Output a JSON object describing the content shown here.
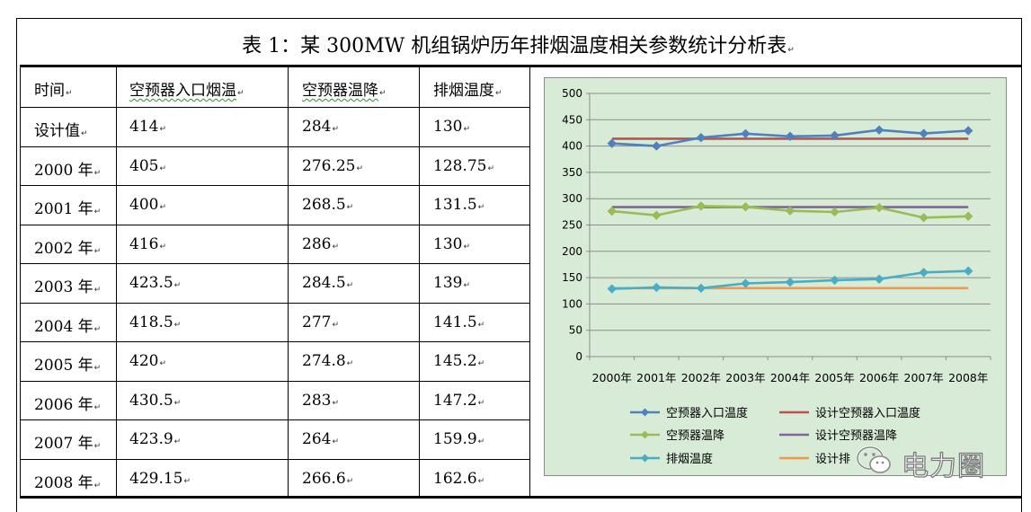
{
  "title": "表 1：某 300MW 机组锅炉历年排烟温度相关参数统计分析表",
  "table": {
    "headers": [
      "时间",
      "空预器入口烟温",
      "空预器温降",
      "排烟温度"
    ],
    "rows": [
      [
        "设计值",
        "414",
        "284",
        "130"
      ],
      [
        "2000 年",
        "405",
        "276.25",
        "128.75"
      ],
      [
        "2001 年",
        "400",
        "268.5",
        "131.5"
      ],
      [
        "2002 年",
        "416",
        "286",
        "130"
      ],
      [
        "2003 年",
        "423.5",
        "284.5",
        "139"
      ],
      [
        "2004 年",
        "418.5",
        "277",
        "141.5"
      ],
      [
        "2005 年",
        "420",
        "274.8",
        "145.2"
      ],
      [
        "2006 年",
        "430.5",
        "283",
        "147.2"
      ],
      [
        "2007 年",
        "423.9",
        "264",
        "159.9"
      ],
      [
        "2008 年",
        "429.15",
        "266.6",
        "162.6"
      ]
    ]
  },
  "chart_data": {
    "type": "line",
    "categories": [
      "2000年",
      "2001年",
      "2002年",
      "2003年",
      "2004年",
      "2005年",
      "2006年",
      "2007年",
      "2008年"
    ],
    "ylim": [
      0,
      500
    ],
    "yticks": [
      0,
      50,
      100,
      150,
      200,
      250,
      300,
      350,
      400,
      450,
      500
    ],
    "grid": true,
    "legend_position": "bottom",
    "series": [
      {
        "name": "空预器入口温度",
        "values": [
          405,
          400,
          416,
          423.5,
          418.5,
          420,
          430.5,
          423.9,
          429.15
        ],
        "color": "#4f81bd",
        "marker": "diamond"
      },
      {
        "name": "设计空预器入口温度",
        "values": [
          414,
          414,
          414,
          414,
          414,
          414,
          414,
          414,
          414
        ],
        "color": "#c0504d",
        "marker": "none"
      },
      {
        "name": "空预器温降",
        "values": [
          276.25,
          268.5,
          286,
          284.5,
          277,
          274.8,
          283,
          264,
          266.6
        ],
        "color": "#9bbb59",
        "marker": "diamond"
      },
      {
        "name": "设计空预器温降",
        "values": [
          284,
          284,
          284,
          284,
          284,
          284,
          284,
          284,
          284
        ],
        "color": "#8064a2",
        "marker": "none"
      },
      {
        "name": "排烟温度",
        "values": [
          128.75,
          131.5,
          130,
          139,
          141.5,
          145.2,
          147.2,
          159.9,
          162.6
        ],
        "color": "#4bacc6",
        "marker": "diamond"
      },
      {
        "name": "设计排烟温度",
        "values": [
          130,
          130,
          130,
          130,
          130,
          130,
          130,
          130,
          130
        ],
        "color": "#f79646",
        "marker": "none"
      }
    ],
    "visible_legend_labels": [
      "空预器入口温度",
      "设计空预器入口温度",
      "空预器温降",
      "设计空预器温降",
      "排烟温度",
      "设计排"
    ],
    "plot_bg": "#d7ebd7"
  },
  "watermark": {
    "text": "电力圈",
    "icon": "wechat-icon"
  }
}
